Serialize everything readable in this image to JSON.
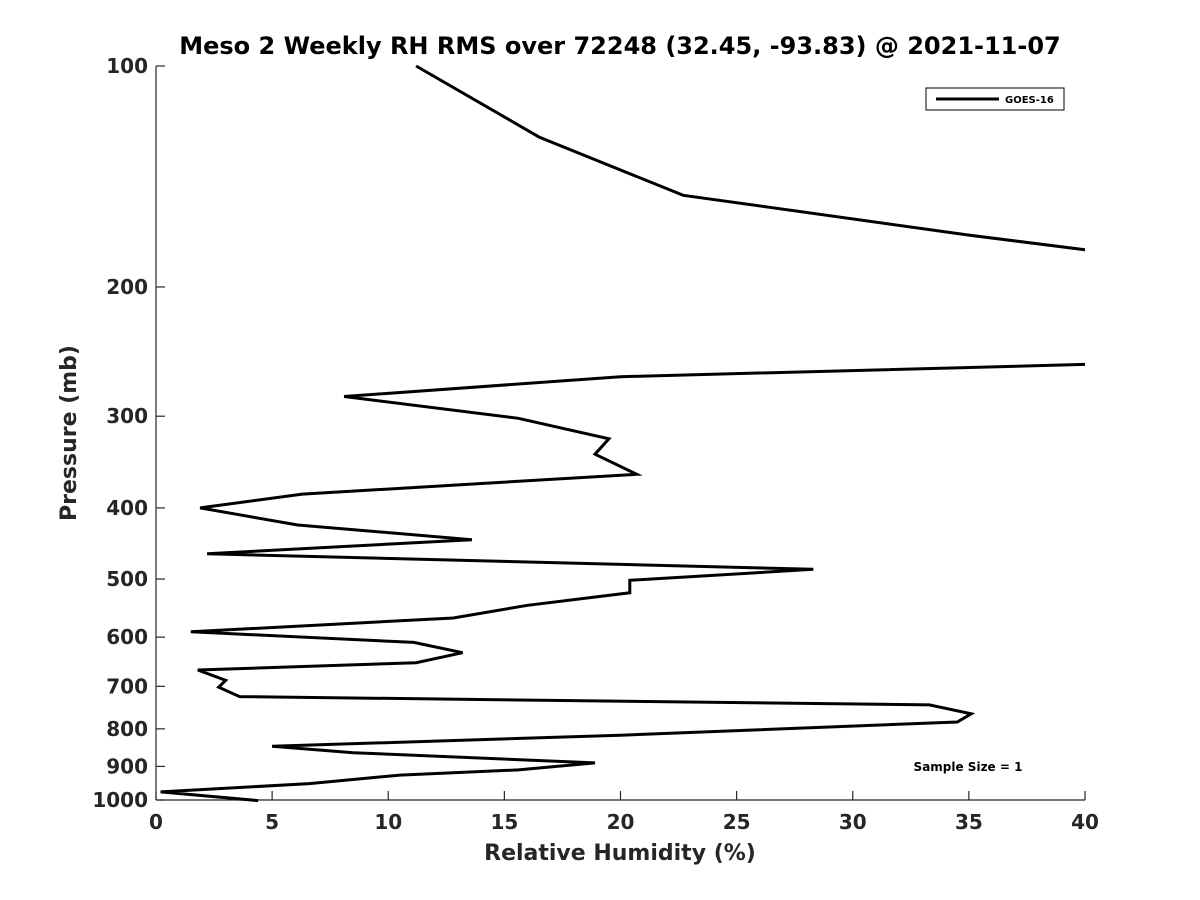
{
  "chart_data": {
    "type": "line",
    "title": "Meso 2 Weekly RH RMS over 72248 (32.45, -93.83) @ 2021-11-07",
    "xlabel": "Relative Humidity (%)",
    "ylabel": "Pressure (mb)",
    "xlim": [
      0,
      40
    ],
    "ylim": [
      100,
      1000
    ],
    "y_scale": "log",
    "y_reversed": true,
    "xticks": [
      0,
      5,
      10,
      15,
      20,
      25,
      30,
      35,
      40
    ],
    "yticks": [
      100,
      200,
      300,
      400,
      500,
      600,
      700,
      800,
      900,
      1000
    ],
    "grid": false,
    "legend_position": "top-right",
    "annotation": "Sample Size = 1",
    "series": [
      {
        "name": "GOES-16",
        "color": "#000000",
        "points": [
          [
            11.2,
            100
          ],
          [
            16.5,
            125
          ],
          [
            22.7,
            150
          ],
          [
            35.0,
            170
          ],
          [
            40.0,
            178
          ],
          [
            null,
            null
          ],
          [
            40.0,
            255
          ],
          [
            20.0,
            265
          ],
          [
            8.1,
            282
          ],
          [
            15.6,
            302
          ],
          [
            19.5,
            322
          ],
          [
            18.9,
            338
          ],
          [
            20.7,
            360
          ],
          [
            6.3,
            383
          ],
          [
            1.9,
            400
          ],
          [
            6.1,
            422
          ],
          [
            13.6,
            442
          ],
          [
            2.2,
            462
          ],
          [
            28.3,
            485
          ],
          [
            20.4,
            502
          ],
          [
            20.4,
            522
          ],
          [
            16.0,
            543
          ],
          [
            12.8,
            565
          ],
          [
            1.5,
            590
          ],
          [
            11.1,
            610
          ],
          [
            13.2,
            630
          ],
          [
            11.2,
            650
          ],
          [
            1.8,
            665
          ],
          [
            3.0,
            687
          ],
          [
            2.7,
            702
          ],
          [
            3.6,
            723
          ],
          [
            33.3,
            742
          ],
          [
            35.1,
            763
          ],
          [
            34.5,
            783
          ],
          [
            20.0,
            816
          ],
          [
            5.0,
            845
          ],
          [
            8.5,
            862
          ],
          [
            18.9,
            890
          ],
          [
            15.6,
            910
          ],
          [
            10.5,
            925
          ],
          [
            6.6,
            950
          ],
          [
            0.2,
            975
          ],
          [
            4.4,
            1002
          ]
        ]
      }
    ]
  }
}
